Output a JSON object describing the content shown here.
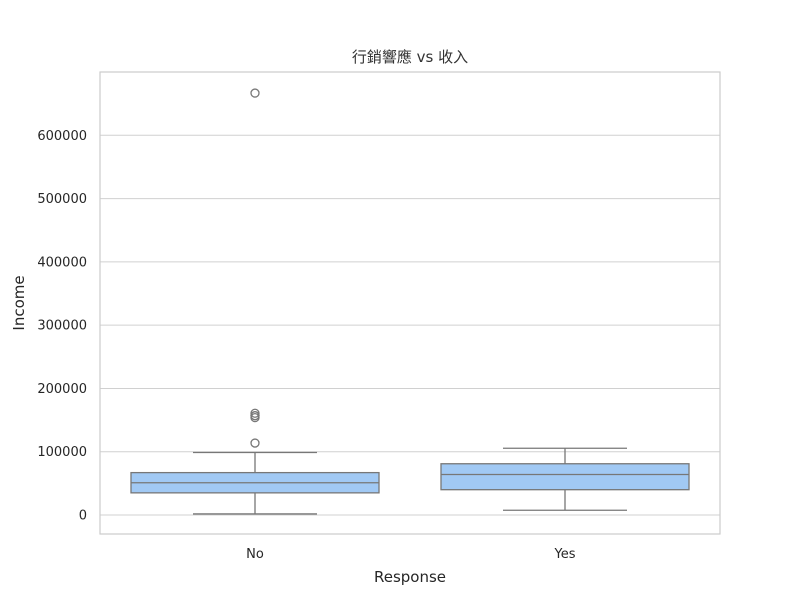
{
  "chart_data": {
    "type": "box",
    "title": "行銷響應 vs 收入",
    "xlabel": "Response",
    "ylabel": "Income",
    "categories": [
      "No",
      "Yes"
    ],
    "ylim": [
      -30000,
      700000
    ],
    "yticks": [
      0,
      100000,
      200000,
      300000,
      400000,
      500000,
      600000
    ],
    "grid": "y",
    "boxes": [
      {
        "name": "No",
        "whisker_low": 1730,
        "q1": 35000,
        "median": 51000,
        "q3": 67000,
        "whisker_high": 98800,
        "fliers": [
          113700,
          153900,
          156900,
          157100,
          160800,
          666700
        ]
      },
      {
        "name": "Yes",
        "whisker_low": 7500,
        "q1": 40000,
        "median": 64000,
        "q3": 81000,
        "whisker_high": 105500,
        "fliers": []
      }
    ],
    "colors": {
      "box_fill": "#a1c9f4",
      "line": "#777777"
    }
  }
}
